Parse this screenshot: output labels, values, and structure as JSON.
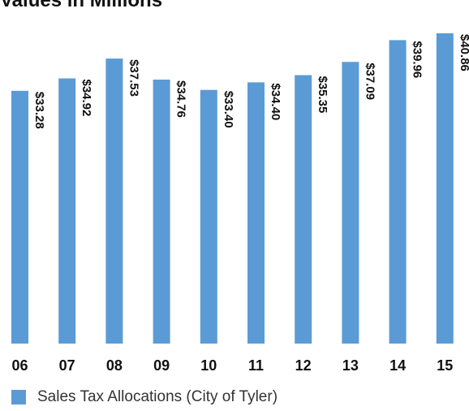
{
  "chart_data": {
    "type": "bar",
    "title": "Values in Millions",
    "categories": [
      "06",
      "07",
      "08",
      "09",
      "10",
      "11",
      "12",
      "13",
      "14",
      "15"
    ],
    "series": [
      {
        "name": "Sales Tax Allocations (City of Tyler)",
        "values": [
          33.28,
          34.92,
          37.53,
          34.76,
          33.4,
          34.4,
          35.35,
          37.09,
          39.96,
          40.86
        ],
        "labels": [
          "$33.28",
          "$34.92",
          "$37.53",
          "$34.76",
          "$33.40",
          "$34.40",
          "$35.35",
          "$37.09",
          "$39.96",
          "$40.86"
        ]
      }
    ],
    "ylim": [
      0,
      43
    ],
    "grid": false,
    "legend": "bottom-left",
    "color": "#5b9bd5"
  }
}
